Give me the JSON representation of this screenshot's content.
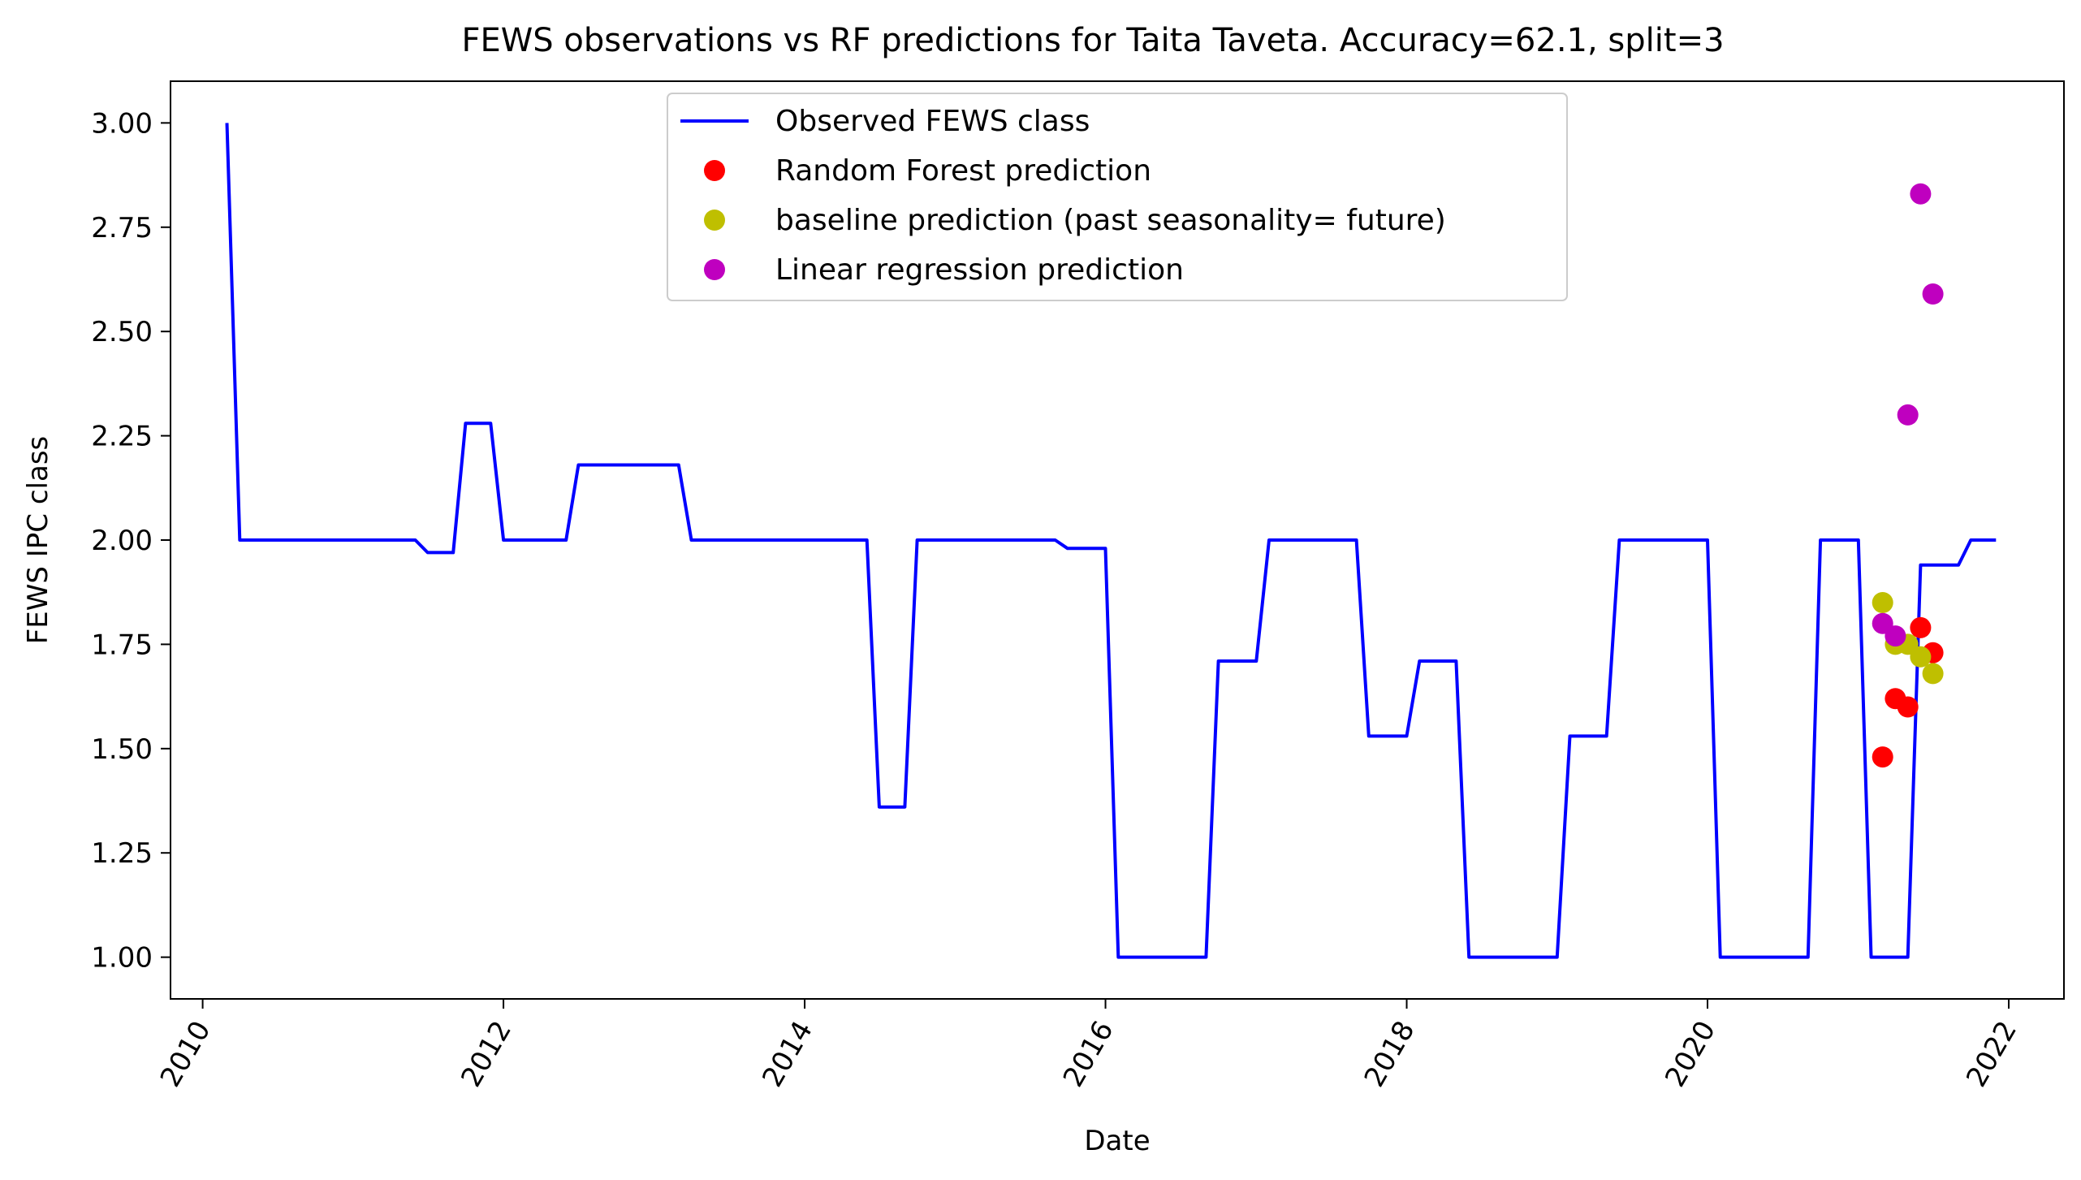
{
  "chart_data": {
    "type": "line",
    "title": "FEWS observations vs RF predictions for Taita Taveta. Accuracy=62.1, split=3",
    "xlabel": "Date",
    "ylabel": "FEWS IPC class",
    "x_tick_labels": [
      "2010",
      "2012",
      "2014",
      "2016",
      "2018",
      "2020",
      "2022"
    ],
    "y_tick_labels": [
      "1.00",
      "1.25",
      "1.50",
      "1.75",
      "2.00",
      "2.25",
      "2.50",
      "2.75",
      "3.00"
    ],
    "xlim": [
      "2009-10-15",
      "2022-05-15"
    ],
    "ylim": [
      0.9,
      3.1
    ],
    "grid": false,
    "legend_position": "top-center",
    "series": [
      {
        "name": "Observed FEWS class",
        "kind": "line",
        "color": "#0000ff",
        "points": [
          [
            "2010-03-01",
            3.0
          ],
          [
            "2010-04-01",
            2.0
          ],
          [
            "2011-06-01",
            2.0
          ],
          [
            "2011-07-01",
            1.97
          ],
          [
            "2011-09-01",
            1.97
          ],
          [
            "2011-10-01",
            2.28
          ],
          [
            "2011-12-01",
            2.28
          ],
          [
            "2012-01-01",
            2.0
          ],
          [
            "2012-06-01",
            2.0
          ],
          [
            "2012-07-01",
            2.18
          ],
          [
            "2013-03-01",
            2.18
          ],
          [
            "2013-04-01",
            2.0
          ],
          [
            "2014-06-01",
            2.0
          ],
          [
            "2014-07-01",
            1.36
          ],
          [
            "2014-09-01",
            1.36
          ],
          [
            "2014-10-01",
            2.0
          ],
          [
            "2015-09-01",
            2.0
          ],
          [
            "2015-10-01",
            1.98
          ],
          [
            "2016-01-01",
            1.98
          ],
          [
            "2016-02-01",
            1.0
          ],
          [
            "2016-09-01",
            1.0
          ],
          [
            "2016-10-01",
            1.71
          ],
          [
            "2017-01-01",
            1.71
          ],
          [
            "2017-02-01",
            2.0
          ],
          [
            "2017-09-01",
            2.0
          ],
          [
            "2017-10-01",
            1.53
          ],
          [
            "2018-01-01",
            1.53
          ],
          [
            "2018-02-01",
            1.71
          ],
          [
            "2018-05-01",
            1.71
          ],
          [
            "2018-06-01",
            1.0
          ],
          [
            "2019-01-01",
            1.0
          ],
          [
            "2019-02-01",
            1.53
          ],
          [
            "2019-05-01",
            1.53
          ],
          [
            "2019-06-01",
            2.0
          ],
          [
            "2020-01-01",
            2.0
          ],
          [
            "2020-02-01",
            1.0
          ],
          [
            "2020-09-01",
            1.0
          ],
          [
            "2020-10-01",
            2.0
          ],
          [
            "2021-01-01",
            2.0
          ],
          [
            "2021-02-01",
            1.0
          ],
          [
            "2021-05-01",
            1.0
          ],
          [
            "2021-06-01",
            1.94
          ],
          [
            "2021-09-01",
            1.94
          ],
          [
            "2021-10-01",
            2.0
          ],
          [
            "2021-12-01",
            2.0
          ]
        ]
      },
      {
        "name": "Random Forest prediction",
        "kind": "scatter",
        "color": "#ff0000",
        "points": [
          [
            "2021-03-01",
            1.48
          ],
          [
            "2021-04-01",
            1.62
          ],
          [
            "2021-05-01",
            1.6
          ],
          [
            "2021-06-01",
            1.79
          ],
          [
            "2021-07-01",
            1.73
          ]
        ]
      },
      {
        "name": "baseline prediction (past seasonality= future)",
        "kind": "scatter",
        "color": "#bfbf00",
        "points": [
          [
            "2021-03-01",
            1.85
          ],
          [
            "2021-04-01",
            1.75
          ],
          [
            "2021-05-01",
            1.75
          ],
          [
            "2021-06-01",
            1.72
          ],
          [
            "2021-07-01",
            1.68
          ]
        ]
      },
      {
        "name": "Linear regression prediction",
        "kind": "scatter",
        "color": "#bf00bf",
        "points": [
          [
            "2021-03-01",
            1.8
          ],
          [
            "2021-04-01",
            1.77
          ],
          [
            "2021-05-01",
            2.3
          ],
          [
            "2021-06-01",
            2.83
          ],
          [
            "2021-07-01",
            2.59
          ]
        ]
      }
    ]
  }
}
